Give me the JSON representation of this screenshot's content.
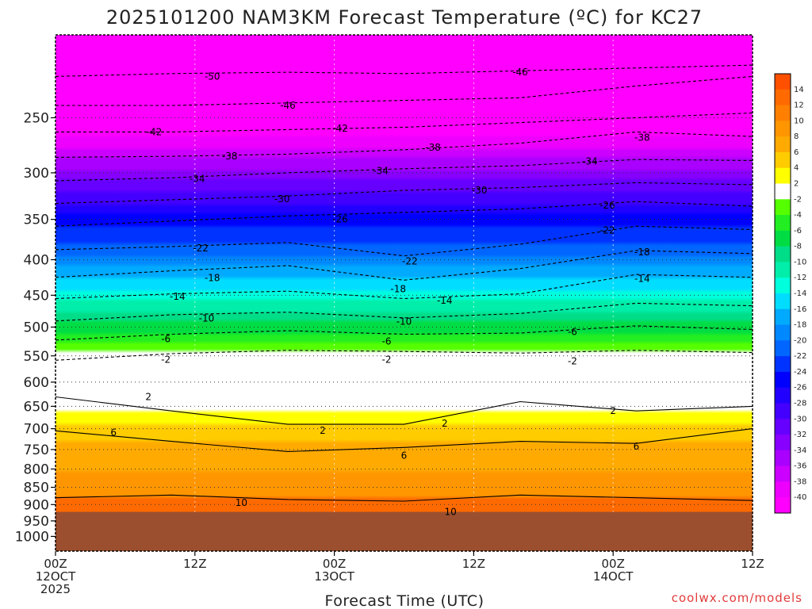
{
  "chart_data": {
    "type": "heatmap",
    "title": "2025101200 NAM3KM Forecast Temperature (ºC) for KC27",
    "xlabel": "Forecast Time (UTC)",
    "ylabel": "",
    "credit": "coolwx.com/models",
    "x_range_hours": [
      0,
      60
    ],
    "y_range_hpa": [
      1050,
      190
    ],
    "y_scale": "log",
    "surface_pressure_hpa": 922,
    "x_ticks": [
      {
        "hour": 0,
        "lines": [
          "00Z",
          "12OCT",
          "2025"
        ]
      },
      {
        "hour": 12,
        "lines": [
          "12Z"
        ]
      },
      {
        "hour": 24,
        "lines": [
          "00Z",
          "13OCT"
        ]
      },
      {
        "hour": 36,
        "lines": [
          "12Z"
        ]
      },
      {
        "hour": 48,
        "lines": [
          "00Z",
          "14OCT"
        ]
      },
      {
        "hour": 60,
        "lines": [
          "12Z"
        ]
      }
    ],
    "y_ticks": [
      250,
      300,
      350,
      400,
      450,
      500,
      550,
      600,
      650,
      700,
      750,
      800,
      850,
      900,
      950,
      1000
    ],
    "colorbar": {
      "labels": [
        "14",
        "12",
        "10",
        "8",
        "6",
        "4",
        "2",
        "-2",
        "-4",
        "-6",
        "-8",
        "-10",
        "-12",
        "-14",
        "-16",
        "-18",
        "-20",
        "-22",
        "-24",
        "-26",
        "-28",
        "-30",
        "-32",
        "-34",
        "-36",
        "-38",
        "-40"
      ],
      "colors": [
        "#ff5000",
        "#ff6a00",
        "#ff8000",
        "#ff9600",
        "#ffaa00",
        "#ffcc00",
        "#ffff00",
        "#ffffff",
        "#55ff00",
        "#22ee22",
        "#00dd44",
        "#00dd88",
        "#00eeaa",
        "#00ffdd",
        "#00ddff",
        "#00aaff",
        "#0088ff",
        "#0066ff",
        "#0033ff",
        "#0000ff",
        "#2200ff",
        "#4400ff",
        "#6600ff",
        "#8800ff",
        "#aa00ff",
        "#cc00ff",
        "#ee00ff",
        "#ff00ff"
      ]
    },
    "isotherms": [
      {
        "value": -50,
        "p_levels": [
          218,
          216,
          215,
          216,
          214,
          212,
          210
        ],
        "dashed": true
      },
      {
        "value": -46,
        "p_levels": [
          240,
          240,
          238,
          236,
          234,
          225,
          218
        ],
        "dashed": true
      },
      {
        "value": -42,
        "p_levels": [
          262,
          262,
          260,
          258,
          254,
          250,
          246
        ],
        "dashed": true
      },
      {
        "value": -38,
        "p_levels": [
          285,
          284,
          282,
          278,
          272,
          262,
          266
        ],
        "dashed": true
      },
      {
        "value": -34,
        "p_levels": [
          308,
          305,
          300,
          296,
          293,
          287,
          288
        ],
        "dashed": true
      },
      {
        "value": -30,
        "p_levels": [
          332,
          328,
          324,
          318,
          315,
          310,
          312
        ],
        "dashed": true
      },
      {
        "value": -26,
        "p_levels": [
          358,
          352,
          346,
          342,
          338,
          330,
          335
        ],
        "dashed": true
      },
      {
        "value": -22,
        "p_levels": [
          387,
          383,
          378,
          395,
          380,
          358,
          362
        ],
        "dashed": true
      },
      {
        "value": -18,
        "p_levels": [
          424,
          415,
          408,
          428,
          412,
          388,
          392
        ],
        "dashed": true
      },
      {
        "value": -14,
        "p_levels": [
          455,
          448,
          444,
          455,
          448,
          420,
          424
        ],
        "dashed": true
      },
      {
        "value": -10,
        "p_levels": [
          490,
          480,
          476,
          485,
          478,
          462,
          466
        ],
        "dashed": true
      },
      {
        "value": -6,
        "p_levels": [
          522,
          512,
          506,
          512,
          510,
          498,
          504
        ],
        "dashed": true
      },
      {
        "value": -2,
        "p_levels": [
          558,
          546,
          540,
          542,
          545,
          540,
          544
        ],
        "dashed": true
      },
      {
        "value": 2,
        "p_levels": [
          630,
          660,
          690,
          690,
          640,
          660,
          650
        ],
        "dashed": false
      },
      {
        "value": 6,
        "p_levels": [
          705,
          730,
          755,
          745,
          730,
          735,
          700
        ],
        "dashed": false
      },
      {
        "value": 10,
        "p_levels": [
          880,
          872,
          885,
          890,
          872,
          880,
          888
        ],
        "dashed": false
      }
    ],
    "contour_labels": [
      {
        "text": "-50",
        "hour": 13.5,
        "p": 218
      },
      {
        "text": "-46",
        "hour": 20,
        "p": 240
      },
      {
        "text": "-46",
        "hour": 40,
        "p": 215
      },
      {
        "text": "-42",
        "hour": 8.5,
        "p": 262
      },
      {
        "text": "-42",
        "hour": 24.5,
        "p": 259
      },
      {
        "text": "-38",
        "hour": 15,
        "p": 284
      },
      {
        "text": "-38",
        "hour": 32.5,
        "p": 276
      },
      {
        "text": "-38",
        "hour": 50.5,
        "p": 267
      },
      {
        "text": "-34",
        "hour": 12.2,
        "p": 306
      },
      {
        "text": "-34",
        "hour": 28,
        "p": 298
      },
      {
        "text": "-34",
        "hour": 46,
        "p": 289
      },
      {
        "text": "-30",
        "hour": 19.5,
        "p": 327
      },
      {
        "text": "-30",
        "hour": 36.5,
        "p": 318
      },
      {
        "text": "-26",
        "hour": 24.5,
        "p": 350
      },
      {
        "text": "-26",
        "hour": 47.5,
        "p": 334
      },
      {
        "text": "-22",
        "hour": 12.5,
        "p": 385
      },
      {
        "text": "-22",
        "hour": 30.5,
        "p": 402
      },
      {
        "text": "-22",
        "hour": 47.5,
        "p": 363
      },
      {
        "text": "-18",
        "hour": 13.5,
        "p": 425
      },
      {
        "text": "-18",
        "hour": 29.5,
        "p": 441
      },
      {
        "text": "-18",
        "hour": 50.5,
        "p": 390
      },
      {
        "text": "-14",
        "hour": 10.5,
        "p": 452
      },
      {
        "text": "-14",
        "hour": 33.5,
        "p": 458
      },
      {
        "text": "-14",
        "hour": 50.5,
        "p": 426
      },
      {
        "text": "-10",
        "hour": 13,
        "p": 486
      },
      {
        "text": "-10",
        "hour": 30,
        "p": 491
      },
      {
        "text": "-6",
        "hour": 9.5,
        "p": 520
      },
      {
        "text": "-6",
        "hour": 28.5,
        "p": 524
      },
      {
        "text": "-6",
        "hour": 44.5,
        "p": 508
      },
      {
        "text": "-2",
        "hour": 9.5,
        "p": 557
      },
      {
        "text": "-2",
        "hour": 28.5,
        "p": 557
      },
      {
        "text": "-2",
        "hour": 44.5,
        "p": 560
      },
      {
        "text": "2",
        "hour": 8,
        "p": 630
      },
      {
        "text": "2",
        "hour": 23,
        "p": 704
      },
      {
        "text": "2",
        "hour": 33.5,
        "p": 688
      },
      {
        "text": "2",
        "hour": 48,
        "p": 660
      },
      {
        "text": "6",
        "hour": 5,
        "p": 709
      },
      {
        "text": "6",
        "hour": 30,
        "p": 765
      },
      {
        "text": "6",
        "hour": 50,
        "p": 742
      },
      {
        "text": "10",
        "hour": 16,
        "p": 895
      },
      {
        "text": "10",
        "hour": 34,
        "p": 922
      }
    ]
  }
}
